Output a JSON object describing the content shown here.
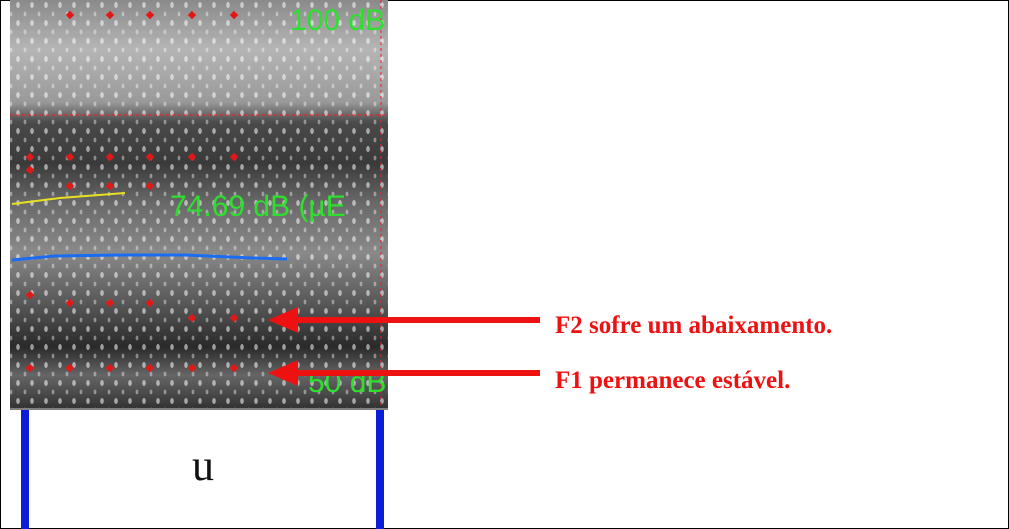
{
  "spectrogram": {
    "top_label": "100 dB",
    "mid_label": "74.69 dB (µE",
    "bottom_label": "50 dB"
  },
  "segment": {
    "label": "u"
  },
  "annotations": [
    "F2 sofre um abaixamento.",
    "F1 permanece estável."
  ]
}
